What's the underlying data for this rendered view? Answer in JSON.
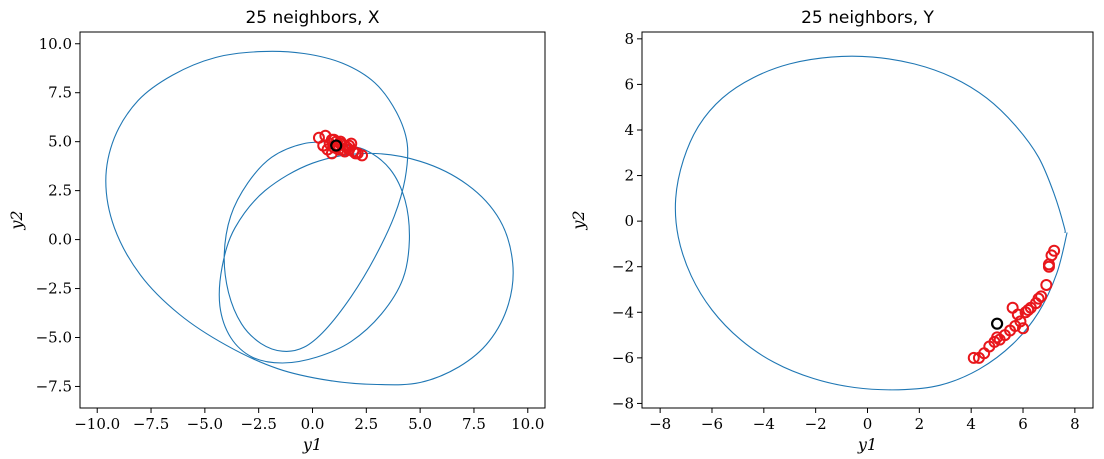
{
  "chart_data": [
    {
      "type": "scatter",
      "title": "25 neighbors, X",
      "xlabel": "y1",
      "ylabel": "y2",
      "xlim": [
        -10.8,
        10.8
      ],
      "ylim": [
        -8.6,
        10.6
      ],
      "xticks": [
        -10.0,
        -7.5,
        -5.0,
        -2.5,
        0.0,
        2.5,
        5.0,
        7.5,
        10.0
      ],
      "xtick_labels": [
        "−10.0",
        "−7.5",
        "−5.0",
        "−2.5",
        "0.0",
        "2.5",
        "5.0",
        "7.5",
        "10.0"
      ],
      "yticks": [
        -7.5,
        -5.0,
        -2.5,
        0.0,
        2.5,
        5.0,
        7.5,
        10.0
      ],
      "ytick_labels": [
        "−7.5",
        "−5.0",
        "−2.5",
        "0.0",
        "2.5",
        "5.0",
        "7.5",
        "10.0"
      ],
      "series": [
        {
          "style": "trajectory-line",
          "color": "#1f77b4",
          "x": [
            1.0,
            2.4,
            3.6,
            4.3,
            4.5,
            4.2,
            3.2,
            1.8,
            0.2,
            -1.4,
            -2.8,
            -3.8,
            -4.3,
            -4.2,
            -3.6,
            -2.2,
            0.0,
            2.5,
            5.0,
            7.2,
            8.7,
            9.3,
            9.1,
            8.2,
            6.8,
            5.0,
            3.0,
            0.8,
            -1.6,
            -4.0,
            -6.2,
            -8.0,
            -9.2,
            -9.6,
            -9.2,
            -8.1,
            -6.5,
            -4.5,
            -2.4,
            -0.4,
            1.4,
            2.9,
            3.9,
            4.4,
            4.3,
            3.8,
            2.9,
            1.8,
            0.6,
            -0.4,
            -1.4,
            -2.4,
            -3.3,
            -3.9,
            -4.1,
            -3.8,
            -3.0,
            -1.9,
            -0.4,
            1.3
          ],
          "y": [
            4.9,
            4.6,
            3.6,
            2.0,
            0.0,
            -2.0,
            -3.8,
            -5.2,
            -6.0,
            -6.3,
            -6.0,
            -5.0,
            -3.4,
            -1.4,
            0.6,
            2.5,
            3.9,
            4.4,
            4.0,
            2.8,
            1.0,
            -1.2,
            -3.3,
            -5.2,
            -6.5,
            -7.3,
            -7.4,
            -7.2,
            -6.6,
            -5.4,
            -3.8,
            -1.8,
            0.6,
            3.0,
            5.2,
            7.1,
            8.4,
            9.3,
            9.6,
            9.5,
            9.0,
            8.0,
            6.5,
            4.9,
            3.1,
            1.2,
            -0.9,
            -2.9,
            -4.6,
            -5.5,
            -5.7,
            -5.3,
            -4.3,
            -2.7,
            -0.8,
            1.2,
            2.9,
            4.2,
            4.9,
            5.0
          ]
        },
        {
          "style": "neighbor-circles",
          "color": "#e8161b",
          "x": [
            0.3,
            0.6,
            0.9,
            1.1,
            1.3,
            1.5,
            1.7,
            1.9,
            2.1,
            2.3,
            0.5,
            0.8,
            1.0,
            1.2,
            1.4,
            1.6,
            1.8,
            2.0,
            0.7,
            1.0,
            1.3,
            1.5,
            1.7,
            0.9,
            1.2
          ],
          "y": [
            5.2,
            5.3,
            5.1,
            5.0,
            4.9,
            4.8,
            4.6,
            4.5,
            4.4,
            4.3,
            4.8,
            4.9,
            4.7,
            4.8,
            4.6,
            4.7,
            4.9,
            4.4,
            4.6,
            5.1,
            5.0,
            4.5,
            4.8,
            4.4,
            4.6
          ]
        },
        {
          "style": "query-circle",
          "color": "#000000",
          "x": [
            1.1
          ],
          "y": [
            4.8
          ]
        }
      ]
    },
    {
      "type": "scatter",
      "title": "25 neighbors, Y",
      "xlabel": "y1",
      "ylabel": "y2",
      "xlim": [
        -8.7,
        8.7
      ],
      "ylim": [
        -8.2,
        8.3
      ],
      "xticks": [
        -8,
        -6,
        -4,
        -2,
        0,
        2,
        4,
        6,
        8
      ],
      "xtick_labels": [
        "−8",
        "−6",
        "−4",
        "−2",
        "0",
        "2",
        "4",
        "6",
        "8"
      ],
      "yticks": [
        -8,
        -6,
        -4,
        -2,
        0,
        2,
        4,
        6,
        8
      ],
      "ytick_labels": [
        "−8",
        "−6",
        "−4",
        "−2",
        "0",
        "2",
        "4",
        "6",
        "8"
      ],
      "series": [
        {
          "style": "trajectory-line",
          "color": "#1f77b4",
          "x": [
            7.7,
            7.3,
            6.6,
            5.6,
            4.3,
            2.8,
            1.2,
            -0.5,
            -2.1,
            -3.6,
            -4.9,
            -6.0,
            -6.8,
            -7.3,
            -7.4,
            -7.1,
            -6.5,
            -5.6,
            -4.4,
            -3.0,
            -1.4,
            0.2,
            1.8,
            3.3,
            4.6,
            5.7,
            6.6,
            7.2,
            7.6,
            7.6
          ],
          "y": [
            -0.5,
            -2.3,
            -4.0,
            -5.4,
            -6.5,
            -7.2,
            -7.4,
            -7.3,
            -6.9,
            -6.2,
            -5.2,
            -3.9,
            -2.4,
            -0.7,
            1.0,
            2.7,
            4.2,
            5.4,
            6.3,
            6.9,
            7.2,
            7.2,
            6.9,
            6.3,
            5.4,
            4.2,
            2.8,
            1.2,
            -0.3,
            -0.5
          ]
        },
        {
          "style": "neighbor-circles",
          "color": "#e8161b",
          "x": [
            7.2,
            7.1,
            7.0,
            6.9,
            6.7,
            6.5,
            6.3,
            6.1,
            5.9,
            5.7,
            5.5,
            5.3,
            5.1,
            4.9,
            4.7,
            4.5,
            4.3,
            4.1,
            6.6,
            6.2,
            5.8,
            5.6,
            5.0,
            7.0,
            6.0
          ],
          "y": [
            -1.3,
            -1.5,
            -1.9,
            -2.8,
            -3.3,
            -3.6,
            -3.8,
            -4.0,
            -4.4,
            -4.6,
            -4.8,
            -5.0,
            -5.2,
            -5.3,
            -5.5,
            -5.8,
            -6.0,
            -6.0,
            -3.4,
            -3.9,
            -4.1,
            -3.8,
            -5.1,
            -2.0,
            -4.7
          ]
        },
        {
          "style": "query-circle",
          "color": "#000000",
          "x": [
            5.0
          ],
          "y": [
            -4.5
          ]
        }
      ]
    }
  ]
}
